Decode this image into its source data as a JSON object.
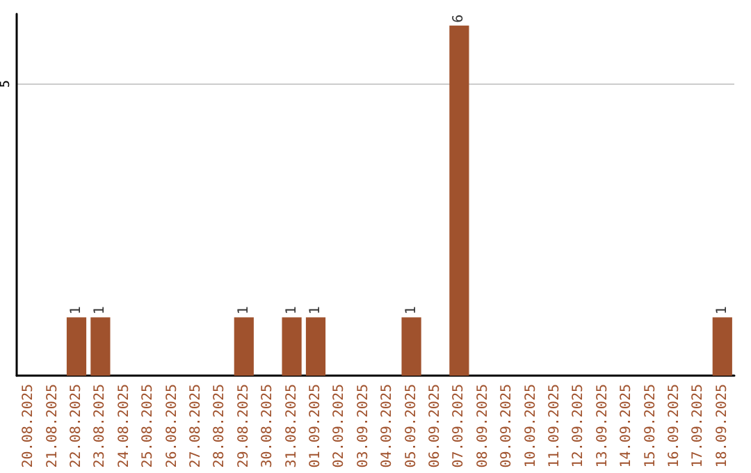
{
  "chart_data": {
    "type": "bar",
    "categories": [
      "20.08.2025",
      "21.08.2025",
      "22.08.2025",
      "23.08.2025",
      "24.08.2025",
      "25.08.2025",
      "26.08.2025",
      "27.08.2025",
      "28.08.2025",
      "29.08.2025",
      "30.08.2025",
      "31.08.2025",
      "01.09.2025",
      "02.09.2025",
      "03.09.2025",
      "04.09.2025",
      "05.09.2025",
      "06.09.2025",
      "07.09.2025",
      "08.09.2025",
      "09.09.2025",
      "10.09.2025",
      "11.09.2025",
      "12.09.2025",
      "13.09.2025",
      "14.09.2025",
      "15.09.2025",
      "16.09.2025",
      "17.09.2025",
      "18.09.2025"
    ],
    "values": [
      0,
      0,
      1,
      1,
      0,
      0,
      0,
      0,
      0,
      1,
      0,
      1,
      1,
      0,
      0,
      0,
      1,
      0,
      6,
      0,
      0,
      0,
      0,
      0,
      0,
      0,
      0,
      0,
      0,
      1
    ],
    "value_labels": [
      null,
      null,
      "1",
      "1",
      null,
      null,
      null,
      null,
      null,
      "1",
      null,
      "1",
      "1",
      null,
      null,
      null,
      "1",
      null,
      "6",
      null,
      null,
      null,
      null,
      null,
      null,
      null,
      null,
      null,
      null,
      "1"
    ],
    "color": "#a0522d",
    "ylim": [
      0,
      6.2
    ],
    "yticks": [
      5
    ],
    "grid": "y"
  }
}
